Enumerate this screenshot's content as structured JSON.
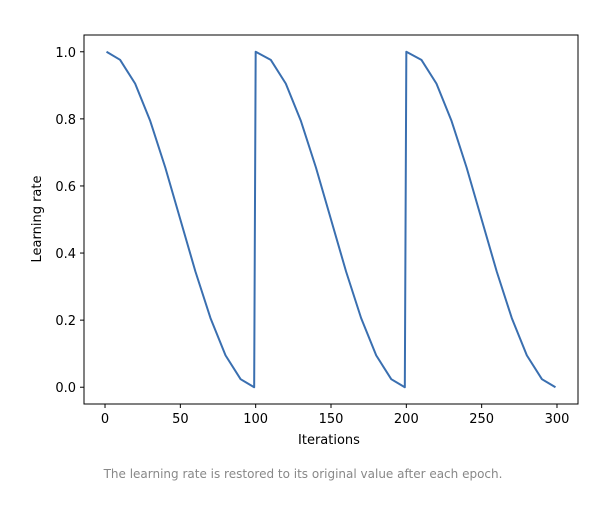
{
  "chart_data": {
    "type": "line",
    "title": "",
    "xlabel": "Iterations",
    "ylabel": "Learning rate",
    "xlim": [
      -13.95,
      313.95
    ],
    "ylim": [
      -0.05,
      1.05
    ],
    "xticks": [
      0,
      50,
      100,
      150,
      200,
      250,
      300
    ],
    "yticks": [
      0.0,
      0.2,
      0.4,
      0.6,
      0.8,
      1.0
    ],
    "xtick_labels": [
      "0",
      "50",
      "100",
      "150",
      "200",
      "250",
      "300"
    ],
    "ytick_labels": [
      "0.0",
      "0.2",
      "0.4",
      "0.6",
      "0.8",
      "1.0"
    ],
    "grid": false,
    "legend": "none",
    "line_color": "#3a6fb0",
    "series": [
      {
        "x": [
          1,
          10,
          20,
          30,
          40,
          50,
          60,
          70,
          80,
          90,
          99,
          100,
          110,
          120,
          130,
          140,
          150,
          160,
          170,
          180,
          190,
          199,
          200,
          210,
          220,
          230,
          240,
          250,
          260,
          270,
          280,
          290,
          299
        ],
        "values": [
          1.0,
          0.976,
          0.905,
          0.794,
          0.655,
          0.5,
          0.345,
          0.206,
          0.095,
          0.024,
          0.0,
          1.0,
          0.976,
          0.905,
          0.794,
          0.655,
          0.5,
          0.345,
          0.206,
          0.095,
          0.024,
          0.0,
          1.0,
          0.976,
          0.905,
          0.794,
          0.655,
          0.5,
          0.345,
          0.206,
          0.095,
          0.024,
          0.0
        ]
      }
    ]
  },
  "caption": "The learning rate is restored to its original value after each epoch."
}
